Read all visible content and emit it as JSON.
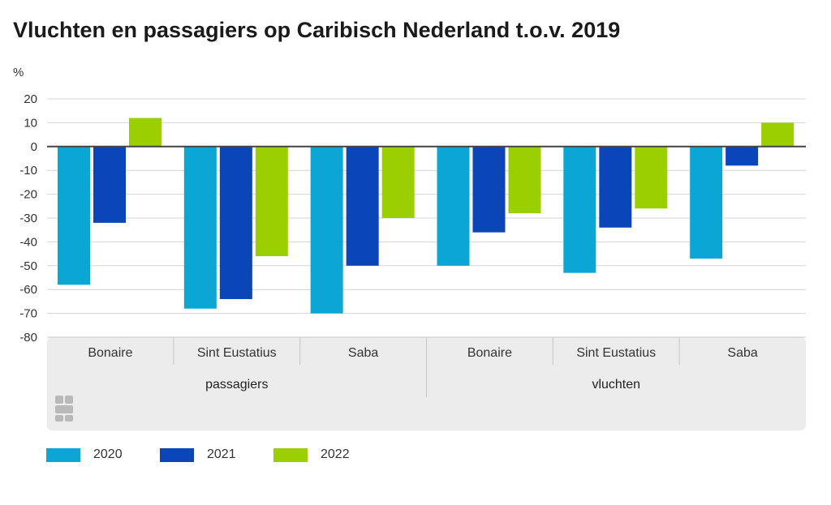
{
  "chart_data": {
    "type": "bar",
    "title": "Vluchten en passagiers op Caribisch Nederland t.o.v. 2019",
    "ylabel": "%",
    "ylim": [
      -80,
      20
    ],
    "yticks": [
      20,
      10,
      0,
      -10,
      -20,
      -30,
      -40,
      -50,
      -60,
      -70,
      -80
    ],
    "grid": true,
    "legend_position": "bottom-left",
    "groups": [
      {
        "label": "passagiers",
        "categories": [
          "Bonaire",
          "Sint Eustatius",
          "Saba"
        ],
        "series": [
          {
            "name": "2020",
            "values": [
              -58,
              -68,
              -70
            ]
          },
          {
            "name": "2021",
            "values": [
              -32,
              -64,
              -50
            ]
          },
          {
            "name": "2022",
            "values": [
              12,
              -46,
              -30
            ]
          }
        ]
      },
      {
        "label": "vluchten",
        "categories": [
          "Bonaire",
          "Sint Eustatius",
          "Saba"
        ],
        "series": [
          {
            "name": "2020",
            "values": [
              -50,
              -53,
              -47
            ]
          },
          {
            "name": "2021",
            "values": [
              -36,
              -34,
              -8
            ]
          },
          {
            "name": "2022",
            "values": [
              -28,
              -26,
              10
            ]
          }
        ]
      }
    ],
    "colors": {
      "2020": "#0ba6d4",
      "2021": "#0b46b8",
      "2022": "#9ccf00"
    }
  }
}
